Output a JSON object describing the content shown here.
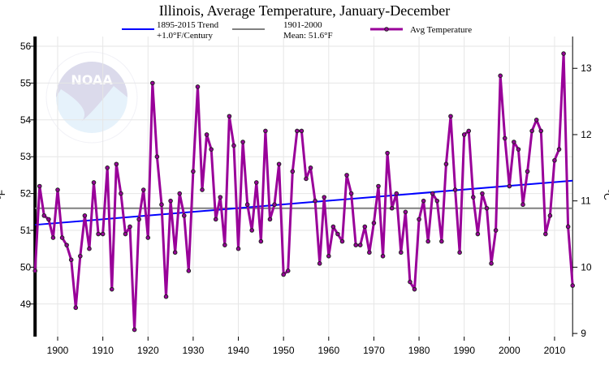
{
  "chart_data": {
    "type": "line",
    "title": "Illinois, Average Temperature, January-December",
    "ylabel": "°F",
    "y2label": "°C",
    "xlim": [
      1895,
      2014
    ],
    "ylim": [
      48.1,
      56.3
    ],
    "y2lim": [
      8.9,
      13.5
    ],
    "xticks": [
      1900,
      1910,
      1920,
      1930,
      1940,
      1950,
      1960,
      1970,
      1980,
      1990,
      2000,
      2010
    ],
    "yticks": [
      49,
      50,
      51,
      52,
      53,
      54,
      55,
      56
    ],
    "y2ticks": [
      9,
      10,
      11,
      12,
      13
    ],
    "grid": true,
    "legend_position": "top",
    "legend": [
      {
        "line1": "1895-2015 Trend",
        "line2": "+1.0°F/Century",
        "color": "#0000ff"
      },
      {
        "line1": "1901-2000",
        "line2": "Mean: 51.6°F",
        "color": "#808080"
      },
      {
        "line1": "Avg Temperature",
        "line2": "",
        "color": "#990099"
      }
    ],
    "trend": {
      "start": [
        1895,
        51.15
      ],
      "end": [
        2014,
        52.35
      ]
    },
    "mean": 51.6,
    "series": [
      {
        "name": "Avg Temperature",
        "color": "#990099",
        "x": [
          1895,
          1896,
          1897,
          1898,
          1899,
          1900,
          1901,
          1902,
          1903,
          1904,
          1905,
          1906,
          1907,
          1908,
          1909,
          1910,
          1911,
          1912,
          1913,
          1914,
          1915,
          1916,
          1917,
          1918,
          1919,
          1920,
          1921,
          1922,
          1923,
          1924,
          1925,
          1926,
          1927,
          1928,
          1929,
          1930,
          1931,
          1932,
          1933,
          1934,
          1935,
          1936,
          1937,
          1938,
          1939,
          1940,
          1941,
          1942,
          1943,
          1944,
          1945,
          1946,
          1947,
          1948,
          1949,
          1950,
          1951,
          1952,
          1953,
          1954,
          1955,
          1956,
          1957,
          1958,
          1959,
          1960,
          1961,
          1962,
          1963,
          1964,
          1965,
          1966,
          1967,
          1968,
          1969,
          1970,
          1971,
          1972,
          1973,
          1974,
          1975,
          1976,
          1977,
          1978,
          1979,
          1980,
          1981,
          1982,
          1983,
          1984,
          1985,
          1986,
          1987,
          1988,
          1989,
          1990,
          1991,
          1992,
          1993,
          1994,
          1995,
          1996,
          1997,
          1998,
          1999,
          2000,
          2001,
          2002,
          2003,
          2004,
          2005,
          2006,
          2007,
          2008,
          2009,
          2010,
          2011,
          2012,
          2013,
          2014
        ],
        "values": [
          49.9,
          52.2,
          51.4,
          51.3,
          50.8,
          52.1,
          50.8,
          50.6,
          50.2,
          48.9,
          50.3,
          51.4,
          50.5,
          52.3,
          50.9,
          50.9,
          52.7,
          49.4,
          52.8,
          52.0,
          50.9,
          51.1,
          48.3,
          51.3,
          52.1,
          50.8,
          55.0,
          53.0,
          51.7,
          49.2,
          51.8,
          50.4,
          52.0,
          51.4,
          49.9,
          52.6,
          54.9,
          52.1,
          53.6,
          53.2,
          51.3,
          51.9,
          50.6,
          54.1,
          53.3,
          50.5,
          53.4,
          51.7,
          51.0,
          52.3,
          50.7,
          53.7,
          51.3,
          51.7,
          52.8,
          49.8,
          49.9,
          52.6,
          53.7,
          53.7,
          52.4,
          52.7,
          51.8,
          50.1,
          51.9,
          50.3,
          51.1,
          50.9,
          50.7,
          52.5,
          52.0,
          50.6,
          50.6,
          51.1,
          50.4,
          51.2,
          52.2,
          50.3,
          53.1,
          51.6,
          52.0,
          50.4,
          51.5,
          49.6,
          49.4,
          51.3,
          51.8,
          50.7,
          52.0,
          51.8,
          50.7,
          52.8,
          54.1,
          52.1,
          50.4,
          53.6,
          53.7,
          51.9,
          50.9,
          52.0,
          51.6,
          50.1,
          51.0,
          55.2,
          53.5,
          52.2,
          53.4,
          53.2,
          51.7,
          52.6,
          53.7,
          54.0,
          53.7,
          50.9,
          51.4,
          52.9,
          53.2,
          55.8,
          51.1,
          49.5
        ]
      }
    ]
  },
  "logo": {
    "name": "NOAA",
    "ring_text": "NATIONAL OCEANIC AND ATMOSPHERIC ADMINISTRATION · U.S. DEPARTMENT OF COMMERCE"
  }
}
